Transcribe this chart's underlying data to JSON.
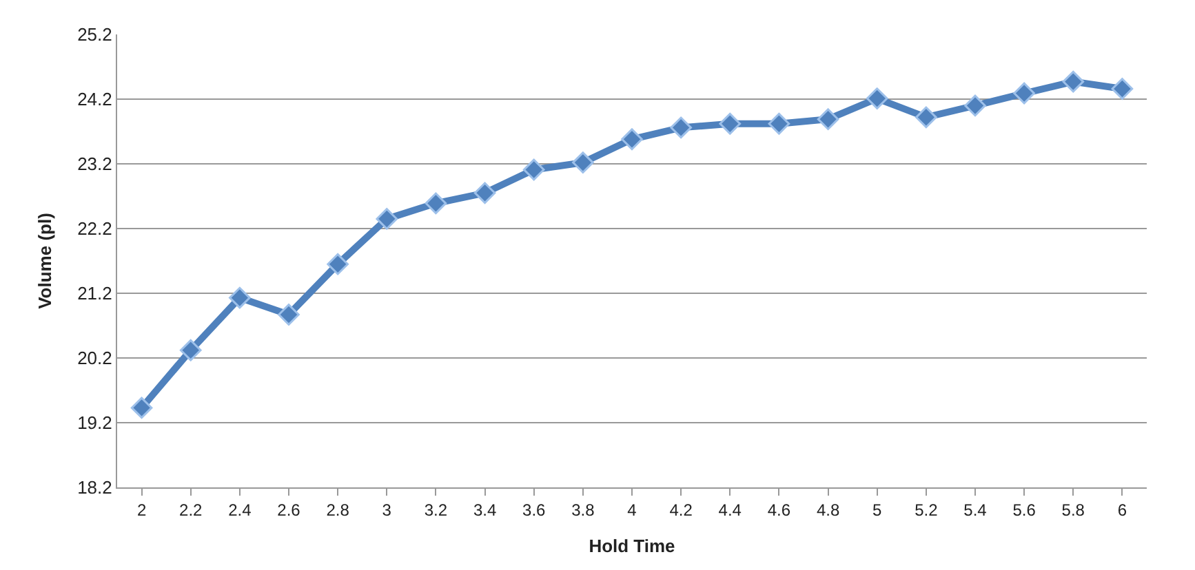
{
  "chart_data": {
    "type": "line",
    "xlabel": "Hold Time",
    "ylabel": "Volume (pl)",
    "categories": [
      "2",
      "2.2",
      "2.4",
      "2.6",
      "2.8",
      "3",
      "3.2",
      "3.4",
      "3.6",
      "3.8",
      "4",
      "4.2",
      "4.4",
      "4.6",
      "4.8",
      "5",
      "5.2",
      "5.4",
      "5.6",
      "5.8",
      "6"
    ],
    "series": [
      {
        "color": "#4f81bd",
        "values": [
          19.43,
          20.32,
          21.13,
          20.87,
          21.65,
          22.35,
          22.59,
          22.75,
          23.11,
          23.22,
          23.58,
          23.76,
          23.82,
          23.82,
          23.89,
          24.21,
          23.92,
          24.1,
          24.29,
          24.47,
          24.36
        ]
      }
    ],
    "ylim": [
      18.2,
      25.2
    ],
    "yticks": [
      18.2,
      19.2,
      20.2,
      21.2,
      22.2,
      23.2,
      24.2,
      25.2
    ],
    "grid": "y",
    "marker": "diamond",
    "line_style": "solid"
  }
}
